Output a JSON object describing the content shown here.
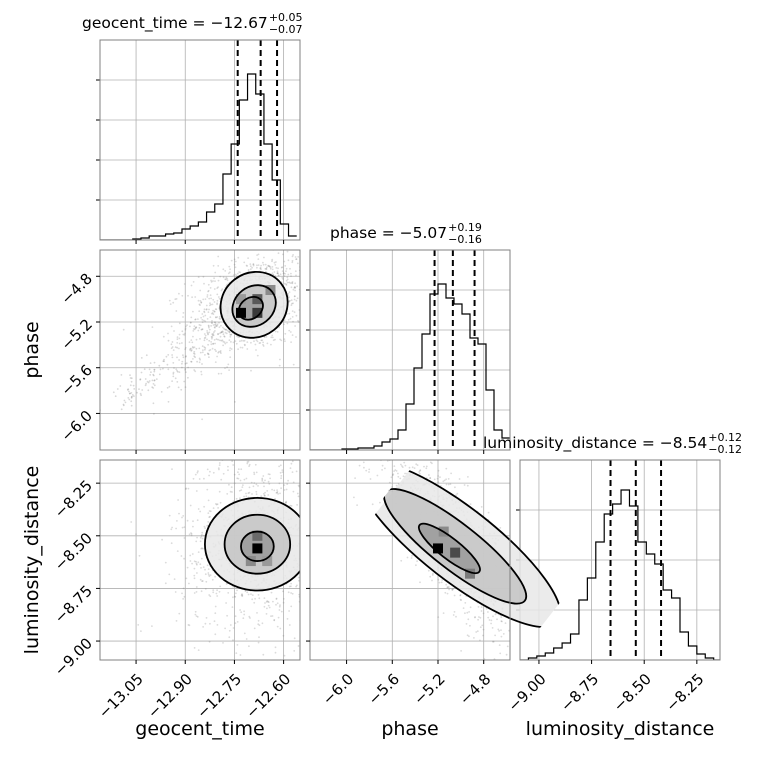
{
  "chart_data": {
    "type": "corner",
    "parameters": [
      "geocent_time",
      "phase",
      "luminosity_distance"
    ],
    "panels": [
      {
        "kind": "hist1d",
        "row": 0,
        "col": 0,
        "param": "geocent_time",
        "title": {
          "name": "geocent_time",
          "median": "−12.67",
          "plus": "+0.05",
          "minus": "−0.07"
        },
        "xlim": [
          -13.16,
          -12.55
        ],
        "ylim": [
          0,
          1.0
        ],
        "bin_edges": [
          -13.16,
          -13.135,
          -13.11,
          -13.085,
          -13.06,
          -13.035,
          -13.01,
          -12.985,
          -12.96,
          -12.935,
          -12.91,
          -12.885,
          -12.86,
          -12.835,
          -12.81,
          -12.785,
          -12.76,
          -12.735,
          -12.71,
          -12.685,
          -12.66,
          -12.635,
          -12.61,
          -12.585,
          -12.56
        ],
        "counts": [
          0.0,
          0.0,
          0.0,
          0.0,
          0.005,
          0.01,
          0.02,
          0.02,
          0.03,
          0.035,
          0.055,
          0.07,
          0.09,
          0.14,
          0.18,
          0.33,
          0.48,
          0.7,
          0.83,
          0.73,
          0.48,
          0.3,
          0.08,
          0.02
        ],
        "quantiles": [
          -12.74,
          -12.67,
          -12.62
        ],
        "yticks": [
          0.2,
          0.4,
          0.6,
          0.8
        ]
      },
      {
        "kind": "hist1d",
        "row": 1,
        "col": 1,
        "param": "phase",
        "title": {
          "name": "phase",
          "median": "−5.07",
          "plus": "+0.19",
          "minus": "−0.16"
        },
        "xlim": [
          -6.32,
          -4.57
        ],
        "ylim": [
          0,
          1.0
        ],
        "bin_edges": [
          -6.32,
          -6.25,
          -6.18,
          -6.11,
          -6.04,
          -5.97,
          -5.9,
          -5.83,
          -5.76,
          -5.69,
          -5.62,
          -5.55,
          -5.48,
          -5.41,
          -5.34,
          -5.27,
          -5.2,
          -5.13,
          -5.06,
          -4.99,
          -4.92,
          -4.85,
          -4.78,
          -4.71,
          -4.64,
          -4.57
        ],
        "counts": [
          0.0,
          0.0,
          0.0,
          0.0,
          0.005,
          0.005,
          0.01,
          0.01,
          0.02,
          0.04,
          0.055,
          0.1,
          0.23,
          0.41,
          0.58,
          0.78,
          0.83,
          0.76,
          0.73,
          0.68,
          0.56,
          0.53,
          0.3,
          0.1,
          0.06
        ],
        "quantiles": [
          -5.23,
          -5.07,
          -4.88
        ],
        "yticks": [
          0.2,
          0.4,
          0.6,
          0.8
        ]
      },
      {
        "kind": "hist1d",
        "row": 2,
        "col": 2,
        "param": "luminosity_distance",
        "title": {
          "name": "luminosity_distance",
          "median": "−8.54",
          "plus": "+0.12",
          "minus": "−0.12"
        },
        "xlim": [
          -9.09,
          -8.14
        ],
        "ylim": [
          0,
          1.0
        ],
        "bin_edges": [
          -9.09,
          -9.05,
          -9.01,
          -8.97,
          -8.93,
          -8.89,
          -8.85,
          -8.81,
          -8.77,
          -8.73,
          -8.69,
          -8.65,
          -8.61,
          -8.57,
          -8.53,
          -8.49,
          -8.45,
          -8.41,
          -8.37,
          -8.33,
          -8.29,
          -8.25,
          -8.21,
          -8.17,
          -8.14
        ],
        "counts": [
          0.0,
          0.01,
          0.02,
          0.035,
          0.06,
          0.085,
          0.13,
          0.3,
          0.41,
          0.59,
          0.73,
          0.78,
          0.85,
          0.77,
          0.59,
          0.53,
          0.48,
          0.35,
          0.31,
          0.14,
          0.07,
          0.03,
          0.01,
          0.0
        ],
        "quantiles": [
          -8.66,
          -8.54,
          -8.42
        ],
        "yticks": [
          0.25,
          0.5,
          0.75
        ]
      },
      {
        "kind": "hist2d",
        "row": 1,
        "col": 0,
        "x": "geocent_time",
        "y": "phase",
        "xlim": [
          -13.16,
          -12.55
        ],
        "ylim": [
          -6.32,
          -4.57
        ],
        "center": [
          -12.7,
          -5.05
        ],
        "spread": [
          0.06,
          0.14
        ],
        "rho": 0.35,
        "tail": {
          "from": [
            -13.1,
            -5.9
          ],
          "to": [
            -12.75,
            -5.2
          ]
        },
        "contours": [
          {
            "level": "outer",
            "cx": -12.69,
            "cy": -5.05,
            "rx": 0.105,
            "ry": 0.28,
            "angle": -38
          },
          {
            "level": "middle",
            "cx": -12.69,
            "cy": -5.06,
            "rx": 0.07,
            "ry": 0.17,
            "angle": -38
          },
          {
            "level": "inner",
            "cx": -12.7,
            "cy": -5.08,
            "rx": 0.04,
            "ry": 0.09,
            "angle": -38
          }
        ],
        "cells": [
          {
            "x": -12.73,
            "y": -5.12,
            "shade": "#000000"
          },
          {
            "x": -12.68,
            "y": -5.0,
            "shade": "#5a5a5a"
          },
          {
            "x": -12.68,
            "y": -5.12,
            "shade": "#3a3a3a"
          },
          {
            "x": -12.64,
            "y": -4.92,
            "shade": "#8a8a8a"
          },
          {
            "x": -12.73,
            "y": -5.0,
            "shade": "#9a9a9a"
          }
        ]
      },
      {
        "kind": "hist2d",
        "row": 2,
        "col": 0,
        "x": "geocent_time",
        "y": "luminosity_distance",
        "xlim": [
          -13.16,
          -12.55
        ],
        "ylim": [
          -9.09,
          -8.14
        ],
        "center": [
          -12.68,
          -8.54
        ],
        "spread": [
          0.075,
          0.14
        ],
        "rho": 0.0,
        "contours": [
          {
            "level": "outer",
            "cx": -12.68,
            "cy": -8.54,
            "rx": 0.16,
            "ry": 0.22,
            "angle": 0
          },
          {
            "level": "middle",
            "cx": -12.68,
            "cy": -8.54,
            "rx": 0.1,
            "ry": 0.14,
            "angle": 0
          },
          {
            "level": "inner",
            "cx": -12.68,
            "cy": -8.55,
            "rx": 0.05,
            "ry": 0.07,
            "angle": 0
          }
        ],
        "cells": [
          {
            "x": -12.68,
            "y": -8.56,
            "shade": "#000000"
          },
          {
            "x": -12.68,
            "y": -8.5,
            "shade": "#6a6a6a"
          },
          {
            "x": -12.7,
            "y": -8.62,
            "shade": "#8a8a8a"
          },
          {
            "x": -12.65,
            "y": -8.62,
            "shade": "#9a9a9a"
          }
        ]
      },
      {
        "kind": "hist2d",
        "row": 2,
        "col": 1,
        "x": "phase",
        "y": "luminosity_distance",
        "xlim": [
          -6.32,
          -4.57
        ],
        "ylim": [
          -9.09,
          -8.14
        ],
        "center": [
          -5.07,
          -8.54
        ],
        "spread": [
          0.22,
          0.16
        ],
        "rho": -0.85,
        "contours": [
          {
            "level": "outer",
            "cx": -5.02,
            "cy": -8.54,
            "rx": 0.32,
            "ry": 0.6,
            "angle": -52
          },
          {
            "level": "middle",
            "cx": -5.05,
            "cy": -8.55,
            "rx": 0.2,
            "ry": 0.42,
            "angle": -52
          },
          {
            "level": "inner",
            "cx": -5.1,
            "cy": -8.56,
            "rx": 0.09,
            "ry": 0.18,
            "angle": -52
          }
        ],
        "cells": [
          {
            "x": -5.2,
            "y": -8.56,
            "shade": "#000000"
          },
          {
            "x": -5.05,
            "y": -8.58,
            "shade": "#4a4a4a"
          },
          {
            "x": -4.92,
            "y": -8.68,
            "shade": "#7a7a7a"
          },
          {
            "x": -5.15,
            "y": -8.48,
            "shade": "#8a8a8a"
          }
        ]
      }
    ],
    "x_axes": [
      {
        "param": "geocent_time",
        "label": "geocent_time",
        "ticks": [
          -13.05,
          -12.9,
          -12.75,
          -12.6
        ],
        "tick_labels": [
          "−13.05",
          "−12.90",
          "−12.75",
          "−12.60"
        ]
      },
      {
        "param": "phase",
        "label": "phase",
        "ticks": [
          -6.0,
          -5.6,
          -5.2,
          -4.8
        ],
        "tick_labels": [
          "−6.0",
          "−5.6",
          "−5.2",
          "−4.8"
        ]
      },
      {
        "param": "luminosity_distance",
        "label": "luminosity_distance",
        "ticks": [
          -9.0,
          -8.75,
          -8.5,
          -8.25
        ],
        "tick_labels": [
          "−9.00",
          "−8.75",
          "−8.50",
          "−8.25"
        ]
      }
    ],
    "y_axes": [
      {
        "param": "phase",
        "label": "phase",
        "ticks": [
          -6.0,
          -5.6,
          -5.2,
          -4.8
        ],
        "tick_labels": [
          "−6.0",
          "−5.6",
          "−5.2",
          "−4.8"
        ]
      },
      {
        "param": "luminosity_distance",
        "label": "luminosity_distance",
        "ticks": [
          -9.0,
          -8.75,
          -8.5,
          -8.25
        ],
        "tick_labels": [
          "−9.00",
          "−8.75",
          "−8.50",
          "−8.25"
        ]
      }
    ],
    "grid": true,
    "colors": {
      "line": "#000000",
      "grid": "#b0b0b0",
      "spine": "#808080",
      "scatter": "#7f7f7f"
    }
  }
}
